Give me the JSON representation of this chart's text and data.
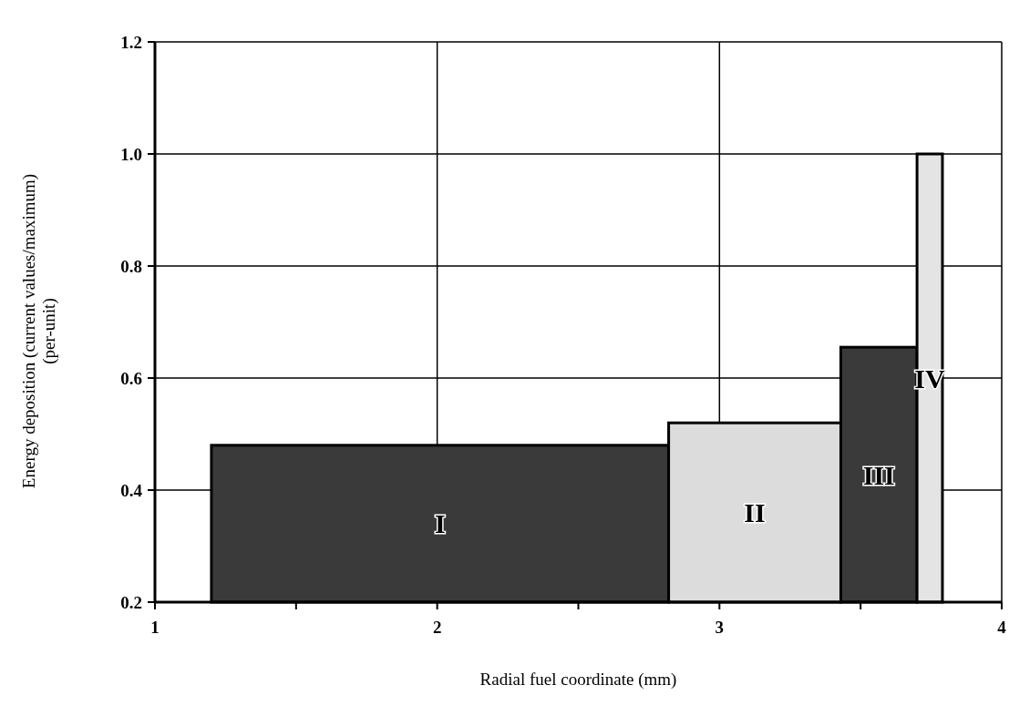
{
  "chart_data": {
    "type": "histogram",
    "xlabel": "Radial fuel coordinate (mm)",
    "ylabel": "Energy deposition (current values/maximum)\n(per-unit)",
    "bins": [
      1.2,
      2.82,
      3.43,
      3.7,
      3.79
    ],
    "values": [
      0.48,
      0.52,
      0.655,
      1.0
    ],
    "colors": [
      "#3a3a3a",
      "#dcdcdc",
      "#3a3a3a",
      "#e4e4e4"
    ],
    "xlim": [
      1,
      4
    ],
    "xticks": [
      1,
      {
        "value": 1.5,
        "label": null
      },
      2,
      {
        "value": 2.5,
        "label": null
      },
      3,
      {
        "value": 3.5,
        "label": null
      },
      4
    ],
    "ylim": [
      0.2,
      1.2
    ],
    "yticks": [
      {
        "value": 0.2,
        "label": "0.2"
      },
      {
        "value": 0.4,
        "label": "0.4"
      },
      {
        "value": 0.6,
        "label": "0.6"
      },
      {
        "value": 0.8,
        "label": "0.8"
      },
      {
        "value": 1.0,
        "label": "1.0"
      },
      {
        "value": 1.2,
        "label": "1.2"
      }
    ],
    "grid": true,
    "annotations": [
      "I",
      "II",
      "III",
      "IV"
    ]
  }
}
